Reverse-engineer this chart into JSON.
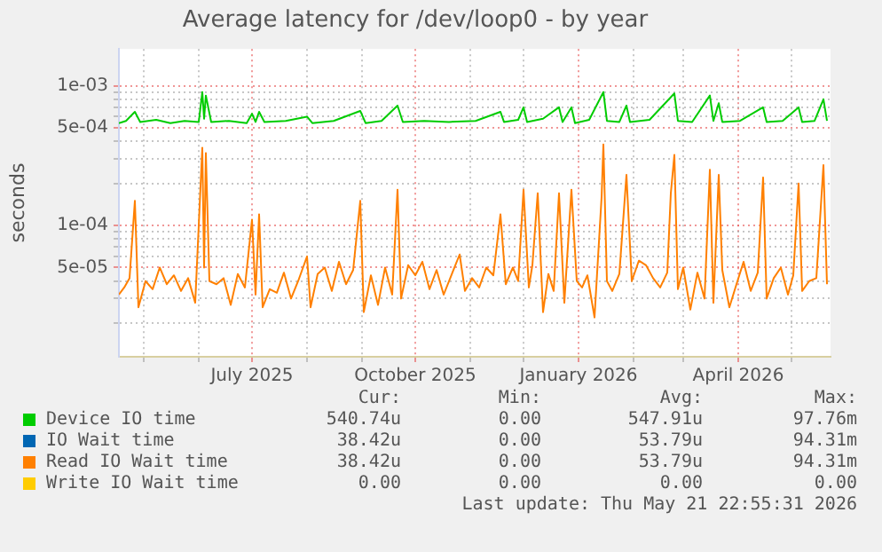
{
  "chart_data": {
    "type": "line",
    "title": "Average latency for /dev/loop0 - by year",
    "ylabel": "seconds",
    "log": "y",
    "grid": true,
    "legend": "bottom",
    "marker": "none",
    "line_style": "solid",
    "xlim": [
      "2025-04-17",
      "2026-05-23"
    ],
    "xticks": [
      {
        "value": "2025-05-01",
        "label": null
      },
      {
        "value": "2025-06-01",
        "label": null
      },
      {
        "value": "2025-07-01",
        "label": "July 2025"
      },
      {
        "value": "2025-08-01",
        "label": null
      },
      {
        "value": "2025-09-01",
        "label": null
      },
      {
        "value": "2025-10-01",
        "label": "October 2025"
      },
      {
        "value": "2025-11-01",
        "label": null
      },
      {
        "value": "2025-12-01",
        "label": null
      },
      {
        "value": "2026-01-01",
        "label": "January 2026"
      },
      {
        "value": "2026-02-01",
        "label": null
      },
      {
        "value": "2026-03-01",
        "label": null
      },
      {
        "value": "2026-04-01",
        "label": "April 2026"
      },
      {
        "value": "2026-05-01",
        "label": null
      }
    ],
    "ylim": [
      1.15e-05,
      0.00183
    ],
    "yticks": [
      {
        "value": 2e-05,
        "label": null
      },
      {
        "value": 3e-05,
        "label": null
      },
      {
        "value": 4e-05,
        "label": null
      },
      {
        "value": 5e-05,
        "label": "5e-05"
      },
      {
        "value": 6e-05,
        "label": null
      },
      {
        "value": 7e-05,
        "label": null
      },
      {
        "value": 8e-05,
        "label": null
      },
      {
        "value": 9e-05,
        "label": null
      },
      {
        "value": 0.0001,
        "label": "1e-04"
      },
      {
        "value": 0.0002,
        "label": null
      },
      {
        "value": 0.0003,
        "label": null
      },
      {
        "value": 0.0004,
        "label": null
      },
      {
        "value": 0.0005,
        "label": "5e-04"
      },
      {
        "value": 0.0006,
        "label": null
      },
      {
        "value": 0.0007,
        "label": null
      },
      {
        "value": 0.0008,
        "label": null
      },
      {
        "value": 0.0009,
        "label": null
      },
      {
        "value": 0.001,
        "label": "1e-03"
      }
    ],
    "series": [
      {
        "name": "Device IO time",
        "color": "#00cc00",
        "x": [
          "2025-04-17",
          "2025-04-21",
          "2025-04-26",
          "2025-04-29",
          "2025-05-08",
          "2025-05-16",
          "2025-05-24",
          "2025-06-01",
          "2025-06-03",
          "2025-06-04",
          "2025-06-05",
          "2025-06-08",
          "2025-06-18",
          "2025-06-28",
          "2025-07-01",
          "2025-07-03",
          "2025-07-05",
          "2025-07-08",
          "2025-07-20",
          "2025-08-01",
          "2025-08-04",
          "2025-08-16",
          "2025-08-31",
          "2025-09-03",
          "2025-09-12",
          "2025-09-21",
          "2025-09-24",
          "2025-10-06",
          "2025-10-20",
          "2025-11-04",
          "2025-11-18",
          "2025-11-20",
          "2025-11-28",
          "2025-12-01",
          "2025-12-03",
          "2025-12-12",
          "2025-12-21",
          "2025-12-23",
          "2025-12-28",
          "2025-12-30",
          "2026-01-07",
          "2026-01-15",
          "2026-01-17",
          "2026-01-24",
          "2026-01-28",
          "2026-01-30",
          "2026-02-10",
          "2026-02-24",
          "2026-02-26",
          "2026-03-06",
          "2026-03-16",
          "2026-03-18",
          "2026-03-21",
          "2026-03-23",
          "2026-04-02",
          "2026-04-15",
          "2026-04-17",
          "2026-04-26",
          "2026-05-05",
          "2026-05-07",
          "2026-05-14",
          "2026-05-19",
          "2026-05-21"
        ],
        "values": [
          0.00054,
          0.00056,
          0.00065,
          0.00055,
          0.00057,
          0.00054,
          0.00056,
          0.00055,
          0.0009,
          0.00058,
          0.00085,
          0.00055,
          0.00056,
          0.00054,
          0.00063,
          0.00055,
          0.00065,
          0.00055,
          0.00056,
          0.0006,
          0.00054,
          0.00056,
          0.00066,
          0.00054,
          0.00056,
          0.00072,
          0.00055,
          0.00056,
          0.00055,
          0.00056,
          0.00065,
          0.00055,
          0.00057,
          0.0007,
          0.00055,
          0.00058,
          0.0007,
          0.00055,
          0.0007,
          0.00054,
          0.00057,
          0.0009,
          0.00056,
          0.00055,
          0.00072,
          0.00055,
          0.00057,
          0.00088,
          0.00056,
          0.00055,
          0.00085,
          0.00056,
          0.00075,
          0.00055,
          0.00056,
          0.0007,
          0.00055,
          0.00056,
          0.0007,
          0.00055,
          0.00056,
          0.0008,
          0.00056
        ]
      },
      {
        "name": "IO Wait time",
        "color": "#0066b3"
      },
      {
        "name": "Read IO Wait time",
        "color": "#ff8000",
        "x": [
          "2025-04-17",
          "2025-04-20",
          "2025-04-23",
          "2025-04-26",
          "2025-04-28",
          "2025-05-02",
          "2025-05-06",
          "2025-05-10",
          "2025-05-14",
          "2025-05-18",
          "2025-05-22",
          "2025-05-26",
          "2025-05-30",
          "2025-06-03",
          "2025-06-04",
          "2025-06-05",
          "2025-06-07",
          "2025-06-11",
          "2025-06-15",
          "2025-06-19",
          "2025-06-23",
          "2025-06-27",
          "2025-07-01",
          "2025-07-03",
          "2025-07-05",
          "2025-07-07",
          "2025-07-11",
          "2025-07-15",
          "2025-07-19",
          "2025-07-23",
          "2025-07-27",
          "2025-08-01",
          "2025-08-03",
          "2025-08-07",
          "2025-08-11",
          "2025-08-15",
          "2025-08-19",
          "2025-08-23",
          "2025-08-27",
          "2025-08-31",
          "2025-09-02",
          "2025-09-06",
          "2025-09-10",
          "2025-09-14",
          "2025-09-18",
          "2025-09-21",
          "2025-09-23",
          "2025-09-27",
          "2025-10-01",
          "2025-10-05",
          "2025-10-09",
          "2025-10-13",
          "2025-10-17",
          "2025-10-21",
          "2025-10-26",
          "2025-10-29",
          "2025-11-02",
          "2025-11-06",
          "2025-11-10",
          "2025-11-14",
          "2025-11-18",
          "2025-11-21",
          "2025-11-25",
          "2025-11-28",
          "2025-12-01",
          "2025-12-04",
          "2025-12-06",
          "2025-12-09",
          "2025-12-12",
          "2025-12-15",
          "2025-12-18",
          "2025-12-21",
          "2025-12-24",
          "2025-12-28",
          "2025-12-31",
          "2026-01-03",
          "2026-01-06",
          "2026-01-10",
          "2026-01-14",
          "2026-01-15",
          "2026-01-17",
          "2026-01-20",
          "2026-01-24",
          "2026-01-28",
          "2026-01-31",
          "2026-02-04",
          "2026-02-08",
          "2026-02-12",
          "2026-02-16",
          "2026-02-20",
          "2026-02-22",
          "2026-02-24",
          "2026-02-26",
          "2026-03-01",
          "2026-03-05",
          "2026-03-09",
          "2026-03-13",
          "2026-03-16",
          "2026-03-18",
          "2026-03-21",
          "2026-03-23",
          "2026-03-27",
          "2026-03-31",
          "2026-04-04",
          "2026-04-08",
          "2026-04-12",
          "2026-04-15",
          "2026-04-17",
          "2026-04-21",
          "2026-04-25",
          "2026-04-29",
          "2026-05-02",
          "2026-05-05",
          "2026-05-07",
          "2026-05-11",
          "2026-05-15",
          "2026-05-19",
          "2026-05-21"
        ],
        "values": [
          3.2e-05,
          3.6e-05,
          4.2e-05,
          0.00015,
          2.6e-05,
          4e-05,
          3.5e-05,
          5e-05,
          3.8e-05,
          4.4e-05,
          3.4e-05,
          4.2e-05,
          2.8e-05,
          0.00036,
          5e-05,
          0.00033,
          4e-05,
          3.8e-05,
          4.2e-05,
          2.7e-05,
          4.5e-05,
          3.6e-05,
          0.00011,
          3.2e-05,
          0.00012,
          2.6e-05,
          3.5e-05,
          3.3e-05,
          4.6e-05,
          3e-05,
          4e-05,
          6e-05,
          2.6e-05,
          4.5e-05,
          5e-05,
          3.4e-05,
          5.5e-05,
          3.8e-05,
          4.8e-05,
          0.00015,
          2.4e-05,
          4.4e-05,
          2.7e-05,
          5e-05,
          3.2e-05,
          0.00018,
          3e-05,
          5.2e-05,
          4.4e-05,
          5.5e-05,
          3.5e-05,
          4.8e-05,
          3.2e-05,
          4.3e-05,
          6.2e-05,
          3.4e-05,
          4.2e-05,
          3.6e-05,
          5e-05,
          4.4e-05,
          0.00012,
          3.8e-05,
          5e-05,
          4e-05,
          0.00018,
          3.6e-05,
          5.2e-05,
          0.00017,
          2.4e-05,
          4.5e-05,
          3.4e-05,
          0.00017,
          2.8e-05,
          0.00018,
          4e-05,
          3.6e-05,
          4.4e-05,
          2.2e-05,
          0.00016,
          0.00038,
          4e-05,
          3.4e-05,
          4.5e-05,
          0.00023,
          4e-05,
          5.6e-05,
          5.2e-05,
          4.2e-05,
          3.6e-05,
          4.6e-05,
          0.00017,
          0.00032,
          3.5e-05,
          5e-05,
          2.5e-05,
          4.6e-05,
          3e-05,
          0.00025,
          2.8e-05,
          0.00023,
          4.8e-05,
          2.6e-05,
          3.8e-05,
          5.5e-05,
          3.4e-05,
          4.6e-05,
          0.00022,
          3e-05,
          4.2e-05,
          5e-05,
          3.2e-05,
          4.4e-05,
          0.0002,
          3.4e-05,
          4e-05,
          4.2e-05,
          0.00027,
          3.8e-05
        ]
      },
      {
        "name": "Write IO Wait time",
        "color": "#ffcc00"
      }
    ],
    "annotations": [
      "Cur:",
      "Min:",
      "Avg:",
      "Max:",
      "540.74u",
      "0.00",
      "547.91u",
      "97.76m",
      "38.42u",
      "0.00",
      "53.79u",
      "94.31m",
      "38.42u",
      "0.00",
      "53.79u",
      "94.31m",
      "0.00",
      "0.00",
      "0.00",
      "0.00",
      "Last update: Thu May 21 22:55:31 2026"
    ]
  }
}
